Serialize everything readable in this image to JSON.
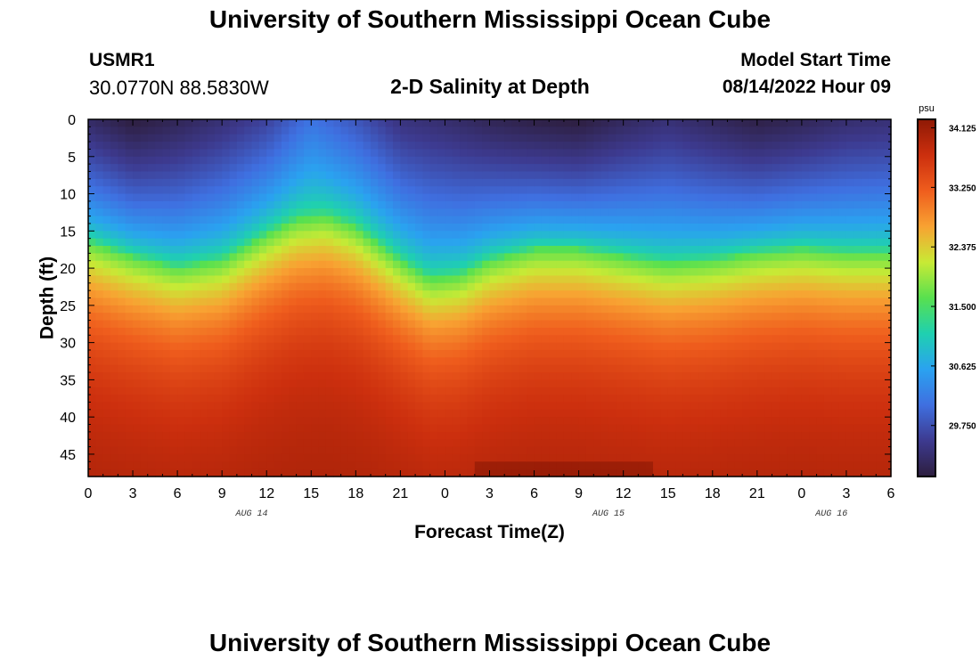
{
  "page": {
    "title_top": "University of Southern Mississippi Ocean Cube",
    "title_bottom": "University of Southern Mississippi Ocean Cube",
    "station_id": "USMR1",
    "coordinates": "30.0770N  88.5830W",
    "model_start_label": "Model Start Time",
    "model_start_value": "08/14/2022 Hour 09"
  },
  "colors": {
    "stops": [
      "#2d1e3e",
      "#3d3a8f",
      "#3f6fe0",
      "#2aa2f0",
      "#1fd0b0",
      "#58e04f",
      "#c8ea35",
      "#f8a232",
      "#ef5d1d",
      "#cc2f0e",
      "#8e1905"
    ]
  },
  "chart_data": {
    "type": "heatmap",
    "title": "2-D Salinity at Depth",
    "xlabel": "Forecast Time(Z)",
    "ylabel": "Depth (ft)",
    "x_tick_labels": [
      "0",
      "3",
      "6",
      "9",
      "12",
      "15",
      "18",
      "21",
      "0",
      "3",
      "6",
      "9",
      "12",
      "15",
      "18",
      "21",
      "0",
      "3",
      "6"
    ],
    "x_hours": [
      0,
      54
    ],
    "date_labels": [
      {
        "label": "AUG 14",
        "hour": 11
      },
      {
        "label": "AUG 15",
        "hour": 35
      },
      {
        "label": "AUG 16",
        "hour": 50
      }
    ],
    "y_ticks": [
      0,
      5,
      10,
      15,
      20,
      25,
      30,
      35,
      40,
      45
    ],
    "ylim": [
      0,
      48
    ],
    "colorbar": {
      "unit": "psu",
      "range": [
        29.0,
        34.25
      ],
      "tick_labels": [
        "34.125",
        "33.250",
        "32.375",
        "31.500",
        "30.625",
        "29.750"
      ],
      "tick_values": [
        34.125,
        33.25,
        32.375,
        31.5,
        30.625,
        29.75
      ]
    },
    "value_range": [
      29.0,
      34.25
    ],
    "halocline_depth_by_hour": [
      {
        "hour": 0,
        "depth": 16.5
      },
      {
        "hour": 3,
        "depth": 18.5
      },
      {
        "hour": 6,
        "depth": 20
      },
      {
        "hour": 9,
        "depth": 19
      },
      {
        "hour": 12,
        "depth": 15.5
      },
      {
        "hour": 14,
        "depth": 13.5
      },
      {
        "hour": 16,
        "depth": 13
      },
      {
        "hour": 18,
        "depth": 14.5
      },
      {
        "hour": 21,
        "depth": 19
      },
      {
        "hour": 23,
        "depth": 21.5
      },
      {
        "hour": 25,
        "depth": 21
      },
      {
        "hour": 27,
        "depth": 19
      },
      {
        "hour": 30,
        "depth": 17.5
      },
      {
        "hour": 33,
        "depth": 17.5
      },
      {
        "hour": 36,
        "depth": 18.5
      },
      {
        "hour": 39,
        "depth": 19.5
      },
      {
        "hour": 42,
        "depth": 19
      },
      {
        "hour": 45,
        "depth": 18
      },
      {
        "hour": 48,
        "depth": 17.5
      },
      {
        "hour": 51,
        "depth": 18
      },
      {
        "hour": 54,
        "depth": 18
      }
    ],
    "surface_value_by_hour": [
      {
        "hour": 0,
        "value": 29.25
      },
      {
        "hour": 3,
        "value": 29.0
      },
      {
        "hour": 6,
        "value": 29.15
      },
      {
        "hour": 9,
        "value": 29.35
      },
      {
        "hour": 12,
        "value": 29.6
      },
      {
        "hour": 15,
        "value": 30.1
      },
      {
        "hour": 18,
        "value": 29.8
      },
      {
        "hour": 21,
        "value": 29.4
      },
      {
        "hour": 24,
        "value": 29.3
      },
      {
        "hour": 27,
        "value": 29.15
      },
      {
        "hour": 30,
        "value": 29.05
      },
      {
        "hour": 33,
        "value": 29.0
      },
      {
        "hour": 36,
        "value": 29.2
      },
      {
        "hour": 39,
        "value": 29.35
      },
      {
        "hour": 42,
        "value": 29.2
      },
      {
        "hour": 45,
        "value": 29.05
      },
      {
        "hour": 48,
        "value": 29.15
      },
      {
        "hour": 51,
        "value": 29.3
      },
      {
        "hour": 54,
        "value": 29.35
      }
    ],
    "deep_value": 34.05
  }
}
